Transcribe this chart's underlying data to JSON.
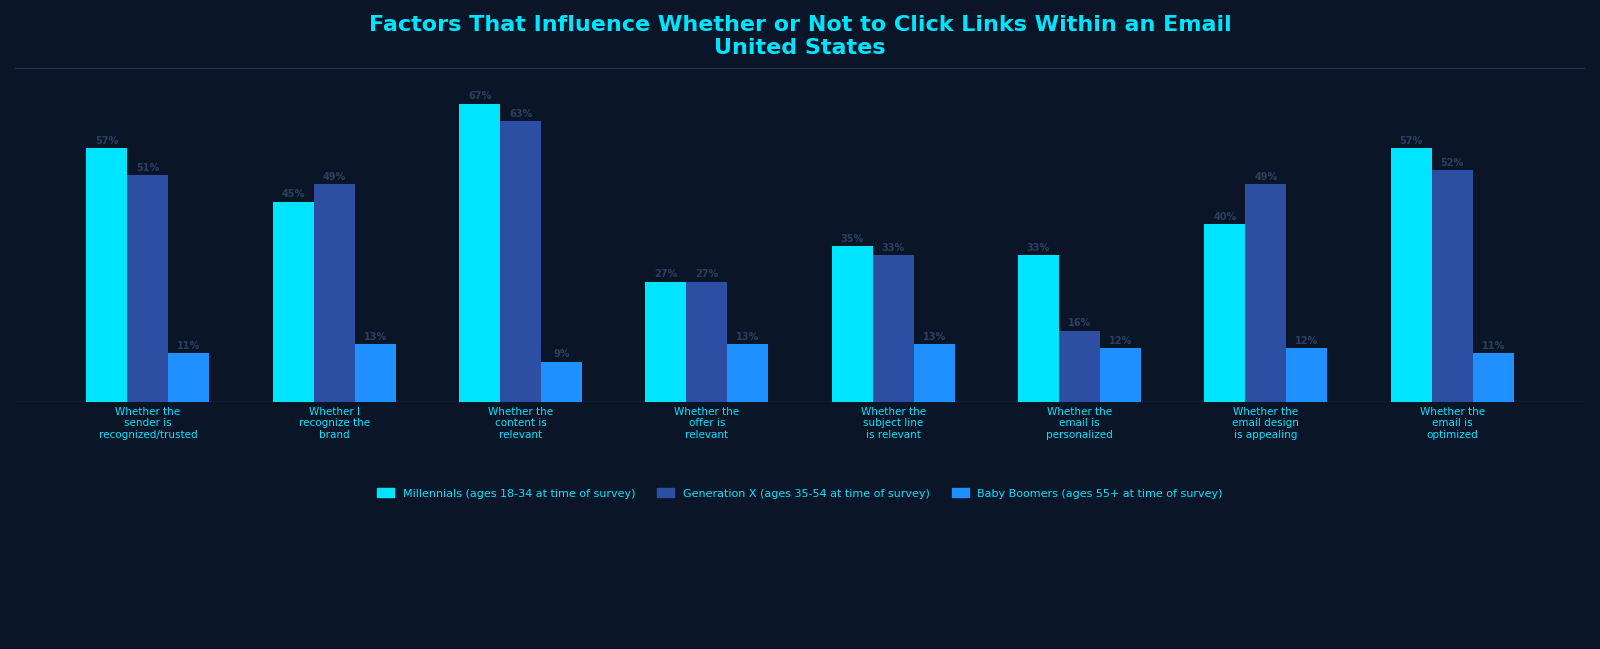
{
  "title_line1": "Factors That Influence Whether or Not to Click Links Within an Email",
  "title_line2": "United States",
  "categories": [
    "Whether the\nsender is\nrecognized/trusted",
    "Whether I\nrecognize the\nbrand",
    "Whether the\ncontent is\nrelevant",
    "Whether the\noffer is\nrelevant",
    "Whether the\nsubject line\nis relevant",
    "Whether the\nemail is\npersonalized",
    "Whether the\nemail design\nis appealing",
    "Whether the\nemail is\noptimized"
  ],
  "series": [
    {
      "name": "Millennials (ages 18-34 at time of survey)",
      "color": "#00e5ff",
      "values": [
        57,
        45,
        67,
        27,
        35,
        33,
        40,
        57
      ]
    },
    {
      "name": "Generation X (ages 35-54 at time of survey)",
      "color": "#2c4fa3",
      "values": [
        51,
        49,
        63,
        27,
        33,
        16,
        49,
        52
      ]
    },
    {
      "name": "Baby Boomers (ages 55+ at time of survey)",
      "color": "#1e90ff",
      "values": [
        11,
        13,
        9,
        13,
        13,
        12,
        12,
        11
      ]
    }
  ],
  "background_color": "#0a1628",
  "plot_background_color": "#0a1628",
  "text_color": "#00e5ff",
  "title_color": "#00e5ff",
  "axis_color": "#1a3a5c",
  "bar_label_color": "#2c3e60",
  "ylim": [
    0,
    75
  ],
  "bar_width": 0.22,
  "legend_position": "lower center",
  "figsize": [
    16.0,
    6.49
  ],
  "dpi": 100
}
